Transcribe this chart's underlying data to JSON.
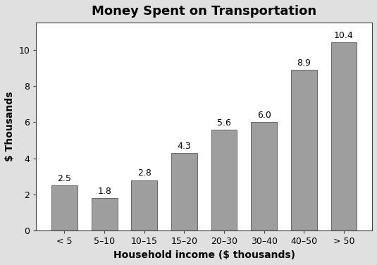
{
  "title": "Money Spent on Transportation",
  "categories": [
    "< 5",
    "5–10",
    "10–15",
    "15–20",
    "20–30",
    "30–40",
    "40–50",
    "> 50"
  ],
  "values": [
    2.5,
    1.8,
    2.8,
    4.3,
    5.6,
    6.0,
    8.9,
    10.4
  ],
  "bar_color": "#9e9e9e",
  "bar_edge_color": "#666666",
  "xlabel": "Household income ($ thousands)",
  "ylabel": "$ Thousands",
  "ylim": [
    0,
    11.5
  ],
  "yticks": [
    0,
    2,
    4,
    6,
    8,
    10
  ],
  "background_color": "#e0e0e0",
  "plot_bg_color": "#ffffff",
  "title_fontsize": 13,
  "label_fontsize": 10,
  "tick_fontsize": 9,
  "annotation_fontsize": 9,
  "bar_width": 0.65
}
